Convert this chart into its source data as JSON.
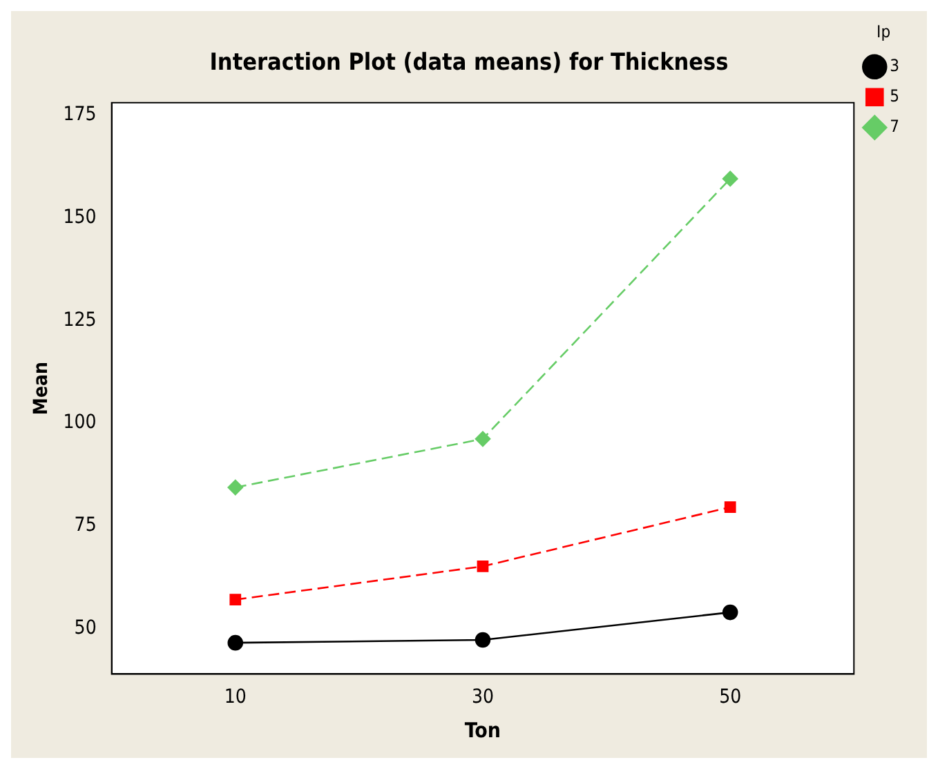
{
  "chart_data": {
    "type": "line",
    "title": "Interaction Plot (data means) for Thickness",
    "xlabel": "Ton",
    "ylabel": "Mean",
    "legend_title": "Ip",
    "x": [
      10,
      30,
      50
    ],
    "series": [
      {
        "name": "3",
        "color": "#000000",
        "values": [
          46.6,
          47.3,
          54.0
        ],
        "marker": "circle",
        "line_style": "solid"
      },
      {
        "name": "5",
        "color": "#ff0000",
        "values": [
          57.1,
          65.2,
          79.6
        ],
        "marker": "square",
        "line_style": "dashed"
      },
      {
        "name": "7",
        "color": "#66cc66",
        "values": [
          84.4,
          96.2,
          159.5
        ],
        "marker": "diamond",
        "line_style": "dashed"
      }
    ],
    "xlim": [
      0,
      60
    ],
    "xticks": [
      10,
      30,
      50
    ],
    "ylim": [
      39,
      178
    ],
    "yticks": [
      50,
      75,
      100,
      125,
      150,
      175
    ],
    "grid": false,
    "legend": "top right"
  }
}
